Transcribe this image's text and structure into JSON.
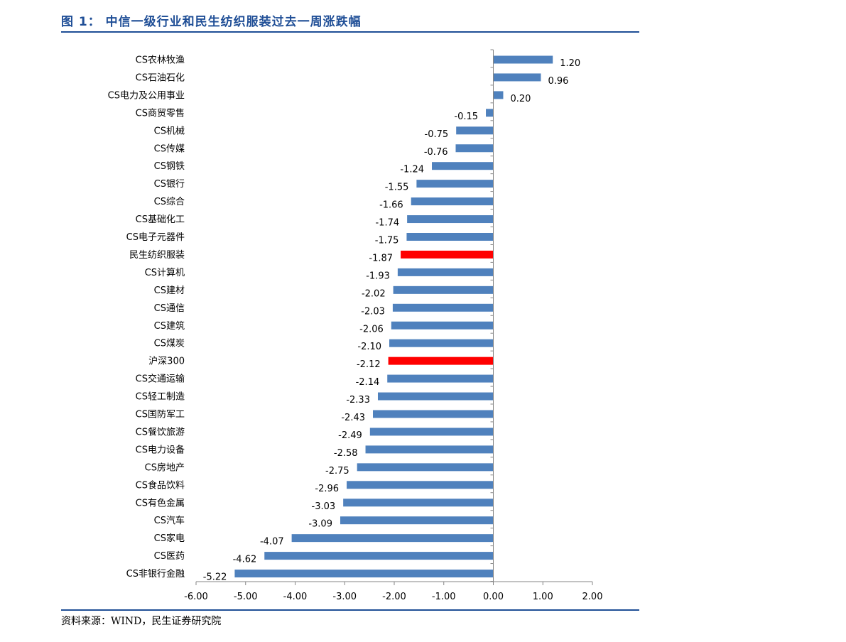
{
  "header": {
    "title": "图 1： 中信一级行业和民生纺织服装过去一周涨跌幅"
  },
  "footer": {
    "source": "资料来源：WIND，民生证券研究院"
  },
  "colors": {
    "default_bar": "#4f81bd",
    "highlight_bar": "#ff0000",
    "title": "#1f4e96",
    "axis": "#868686"
  },
  "chart_data": {
    "type": "bar",
    "orientation": "horizontal",
    "title": "",
    "xlabel": "",
    "ylabel": "",
    "xlim": [
      -6.0,
      2.0
    ],
    "ticks": [
      "-6.00",
      "-5.00",
      "-4.00",
      "-3.00",
      "-2.00",
      "-1.00",
      "0.00",
      "1.00",
      "2.00"
    ],
    "tick_values": [
      -6,
      -5,
      -4,
      -3,
      -2,
      -1,
      0,
      1,
      2
    ],
    "grid": false,
    "legend": "none",
    "categories": [
      "CS农林牧渔",
      "CS石油石化",
      "CS电力及公用事业",
      "CS商贸零售",
      "CS机械",
      "CS传媒",
      "CS钢铁",
      "CS银行",
      "CS综合",
      "CS基础化工",
      "CS电子元器件",
      "民生纺织服装",
      "CS计算机",
      "CS建材",
      "CS通信",
      "CS建筑",
      "CS煤炭",
      "沪深300",
      "CS交通运输",
      "CS轻工制造",
      "CS国防军工",
      "CS餐饮旅游",
      "CS电力设备",
      "CS房地产",
      "CS食品饮料",
      "CS有色金属",
      "CS汽车",
      "CS家电",
      "CS医药",
      "CS非银行金融"
    ],
    "values": [
      1.2,
      0.96,
      0.2,
      -0.15,
      -0.75,
      -0.76,
      -1.24,
      -1.55,
      -1.66,
      -1.74,
      -1.75,
      -1.87,
      -1.93,
      -2.02,
      -2.03,
      -2.06,
      -2.1,
      -2.12,
      -2.14,
      -2.33,
      -2.43,
      -2.49,
      -2.58,
      -2.75,
      -2.96,
      -3.03,
      -3.09,
      -4.07,
      -4.62,
      -5.22
    ],
    "value_labels": [
      "1.20",
      "0.96",
      "0.20",
      "-0.15",
      "-0.75",
      "-0.76",
      "-1.24",
      "-1.55",
      "-1.66",
      "-1.74",
      "-1.75",
      "-1.87",
      "-1.93",
      "-2.02",
      "-2.03",
      "-2.06",
      "-2.10",
      "-2.12",
      "-2.14",
      "-2.33",
      "-2.43",
      "-2.49",
      "-2.58",
      "-2.75",
      "-2.96",
      "-3.03",
      "-3.09",
      "-4.07",
      "-4.62",
      "-5.22"
    ],
    "highlighted": [
      "民生纺织服装",
      "沪深300"
    ]
  }
}
